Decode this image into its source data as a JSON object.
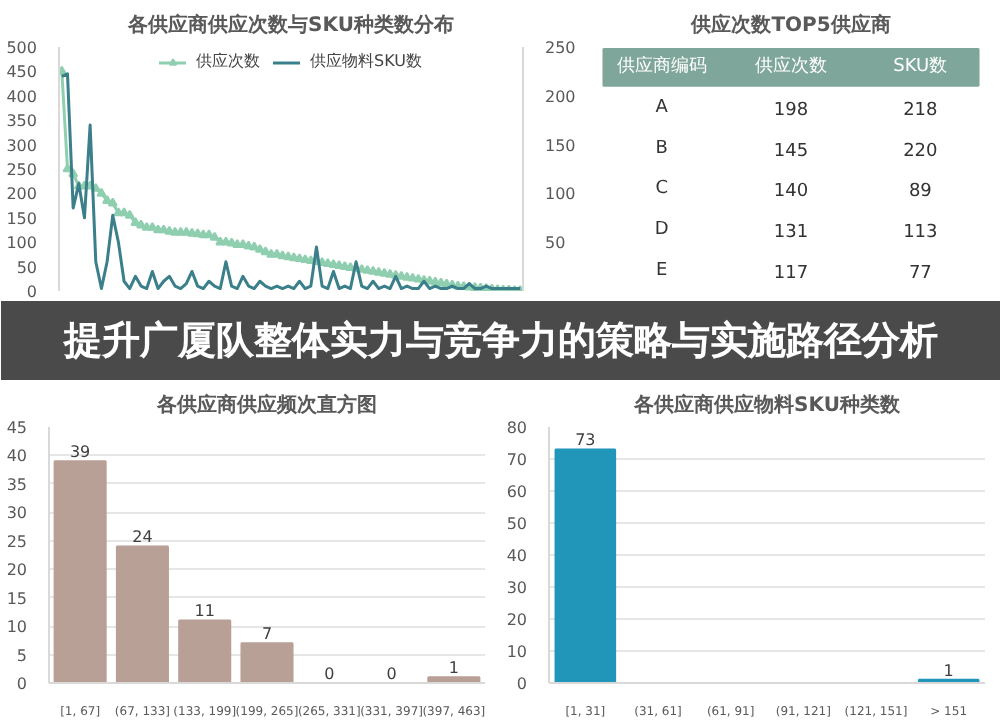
{
  "chart_data": [
    {
      "type": "line",
      "title": "各供应商供应次数与SKU种类数分布",
      "categories": [
        null,
        null,
        null,
        null,
        null,
        null,
        null,
        null,
        null,
        null,
        null,
        null,
        null,
        null,
        null,
        null,
        null,
        null,
        null,
        null,
        null,
        null,
        null,
        null,
        null,
        null,
        null,
        null,
        null,
        null,
        null,
        null,
        null,
        null,
        null,
        null,
        null,
        null,
        null,
        null,
        null,
        null,
        null,
        null,
        null,
        null,
        null,
        null,
        null,
        null,
        null,
        null,
        null,
        null,
        null,
        null,
        null,
        null,
        null,
        null,
        null,
        null,
        null,
        null,
        null,
        null,
        null,
        null,
        null,
        null,
        null,
        null,
        null,
        null,
        null,
        null,
        null,
        null,
        null,
        null,
        null,
        null
      ],
      "series": [
        {
          "name": "供应次数",
          "color": "#8fcfb0",
          "marker": "triangle",
          "values": [
            450,
            250,
            240,
            215,
            215,
            215,
            210,
            200,
            185,
            180,
            160,
            160,
            155,
            140,
            135,
            130,
            130,
            125,
            125,
            122,
            120,
            120,
            120,
            118,
            117,
            115,
            115,
            110,
            100,
            100,
            98,
            95,
            95,
            92,
            90,
            85,
            80,
            75,
            75,
            72,
            70,
            68,
            66,
            64,
            62,
            60,
            58,
            56,
            54,
            52,
            50,
            48,
            46,
            44,
            42,
            40,
            38,
            36,
            34,
            32,
            30,
            28,
            26,
            24,
            22,
            20,
            18,
            16,
            14,
            12,
            10,
            9,
            8,
            7,
            6,
            5,
            4,
            3,
            2,
            2,
            1,
            1
          ]
        },
        {
          "name": "供应物料SKU数",
          "color": "#3a7f8a",
          "values": [
            440,
            445,
            170,
            220,
            150,
            340,
            60,
            5,
            60,
            155,
            100,
            20,
            5,
            30,
            10,
            5,
            40,
            5,
            20,
            30,
            10,
            5,
            15,
            40,
            10,
            5,
            20,
            10,
            5,
            60,
            10,
            5,
            30,
            10,
            5,
            20,
            10,
            5,
            10,
            5,
            10,
            5,
            20,
            5,
            10,
            90,
            10,
            5,
            40,
            5,
            10,
            5,
            60,
            10,
            5,
            20,
            5,
            10,
            5,
            30,
            5,
            10,
            5,
            5,
            20,
            5,
            10,
            5,
            5,
            10,
            5,
            5,
            15,
            5,
            5,
            10,
            5,
            5,
            5,
            5,
            5,
            5
          ]
        }
      ],
      "ylim": [
        0,
        500
      ],
      "yticks": [
        0,
        50,
        100,
        150,
        200,
        250,
        300,
        350,
        400,
        450,
        500
      ],
      "y2lim": [
        0,
        250
      ],
      "y2ticks": [
        50,
        100,
        150,
        200,
        250
      ],
      "legend": "top",
      "line_style": "solid",
      "grid": false
    },
    {
      "type": "other",
      "title": "供应次数TOP5供应商",
      "xlabel": "供应商编码",
      "categories": [
        "A",
        "B",
        "C",
        "D",
        "E"
      ],
      "series": [
        {
          "name": "供应次数",
          "values": [
            198,
            145,
            140,
            131,
            117
          ]
        },
        {
          "name": "SKU数",
          "values": [
            218,
            220,
            89,
            113,
            77
          ]
        }
      ],
      "data_labels": true
    },
    {
      "type": "other",
      "title": "提升广厦队整体实力与竞争力的策略与实施路径分析"
    },
    {
      "type": "bar",
      "title": "各供应商供应频次直方图",
      "categories": [
        "[1, 67]",
        "(67, 133]",
        "(133, 199]",
        "(199, 265]",
        "(265, 331]",
        "(331, 397]",
        "(397, 463]"
      ],
      "values": [
        39,
        24,
        11,
        7,
        0,
        0,
        1
      ],
      "color": "#b9a097",
      "ylim": [
        0,
        45
      ],
      "yticks": [
        0,
        5,
        10,
        15,
        20,
        25,
        30,
        35,
        40,
        45
      ],
      "grid": "y",
      "data_labels": true
    },
    {
      "type": "bar",
      "title": "各供应商供应物料SKU种类数",
      "categories": [
        "[1, 31]",
        "(31, 61]",
        "(61, 91]",
        "(91, 121]",
        "(121, 151]",
        "> 151"
      ],
      "values": [
        73,
        null,
        null,
        null,
        null,
        1
      ],
      "color": "#2196b9",
      "ylim": [
        0,
        80
      ],
      "yticks": [
        0,
        10,
        20,
        30,
        40,
        50,
        60,
        70,
        80
      ],
      "grid": "y",
      "data_labels": true
    }
  ]
}
